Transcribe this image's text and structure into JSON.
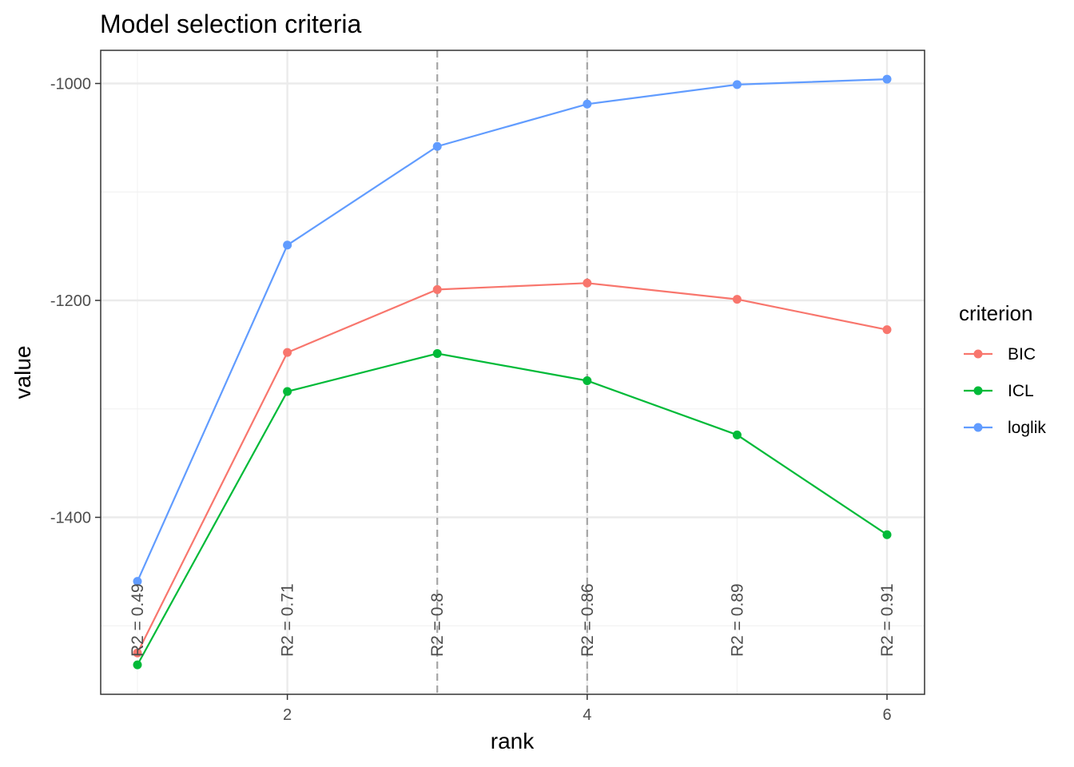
{
  "chart_data": {
    "type": "line",
    "title": "Model selection criteria",
    "xlabel": "rank",
    "ylabel": "value",
    "xlim": [
      0.9,
      6.25
    ],
    "ylim": [
      -1530,
      970
    ],
    "x_ticks": [
      2,
      4,
      6
    ],
    "y_ticks": [
      -1000,
      -1200,
      -1400
    ],
    "y_minor": [
      -1100,
      -1300,
      -1500
    ],
    "x_minor": [
      1,
      3,
      5
    ],
    "x": [
      1,
      2,
      3,
      4,
      5,
      6
    ],
    "series": [
      {
        "name": "BIC",
        "color": "#f8766d",
        "values": [
          -1525,
          -1248,
          -1190,
          -1184,
          -1199,
          -1227
        ]
      },
      {
        "name": "ICL",
        "color": "#00ba38",
        "values": [
          -1536,
          -1284,
          -1249,
          -1274,
          -1324,
          -1416
        ]
      },
      {
        "name": "loglik",
        "color": "#619cff",
        "values": [
          -1459,
          -1149,
          -1058,
          -1019,
          -1001,
          -996
        ]
      }
    ],
    "vlines": [
      3,
      4
    ],
    "annotations": [
      "R2 = 0.49",
      "R2 = 0.71",
      "R2 = 0.8",
      "R2 = 0.86",
      "R2 = 0.89",
      "R2 = 0.91"
    ],
    "legend": {
      "title": "criterion",
      "position": "right"
    },
    "grid": true
  }
}
